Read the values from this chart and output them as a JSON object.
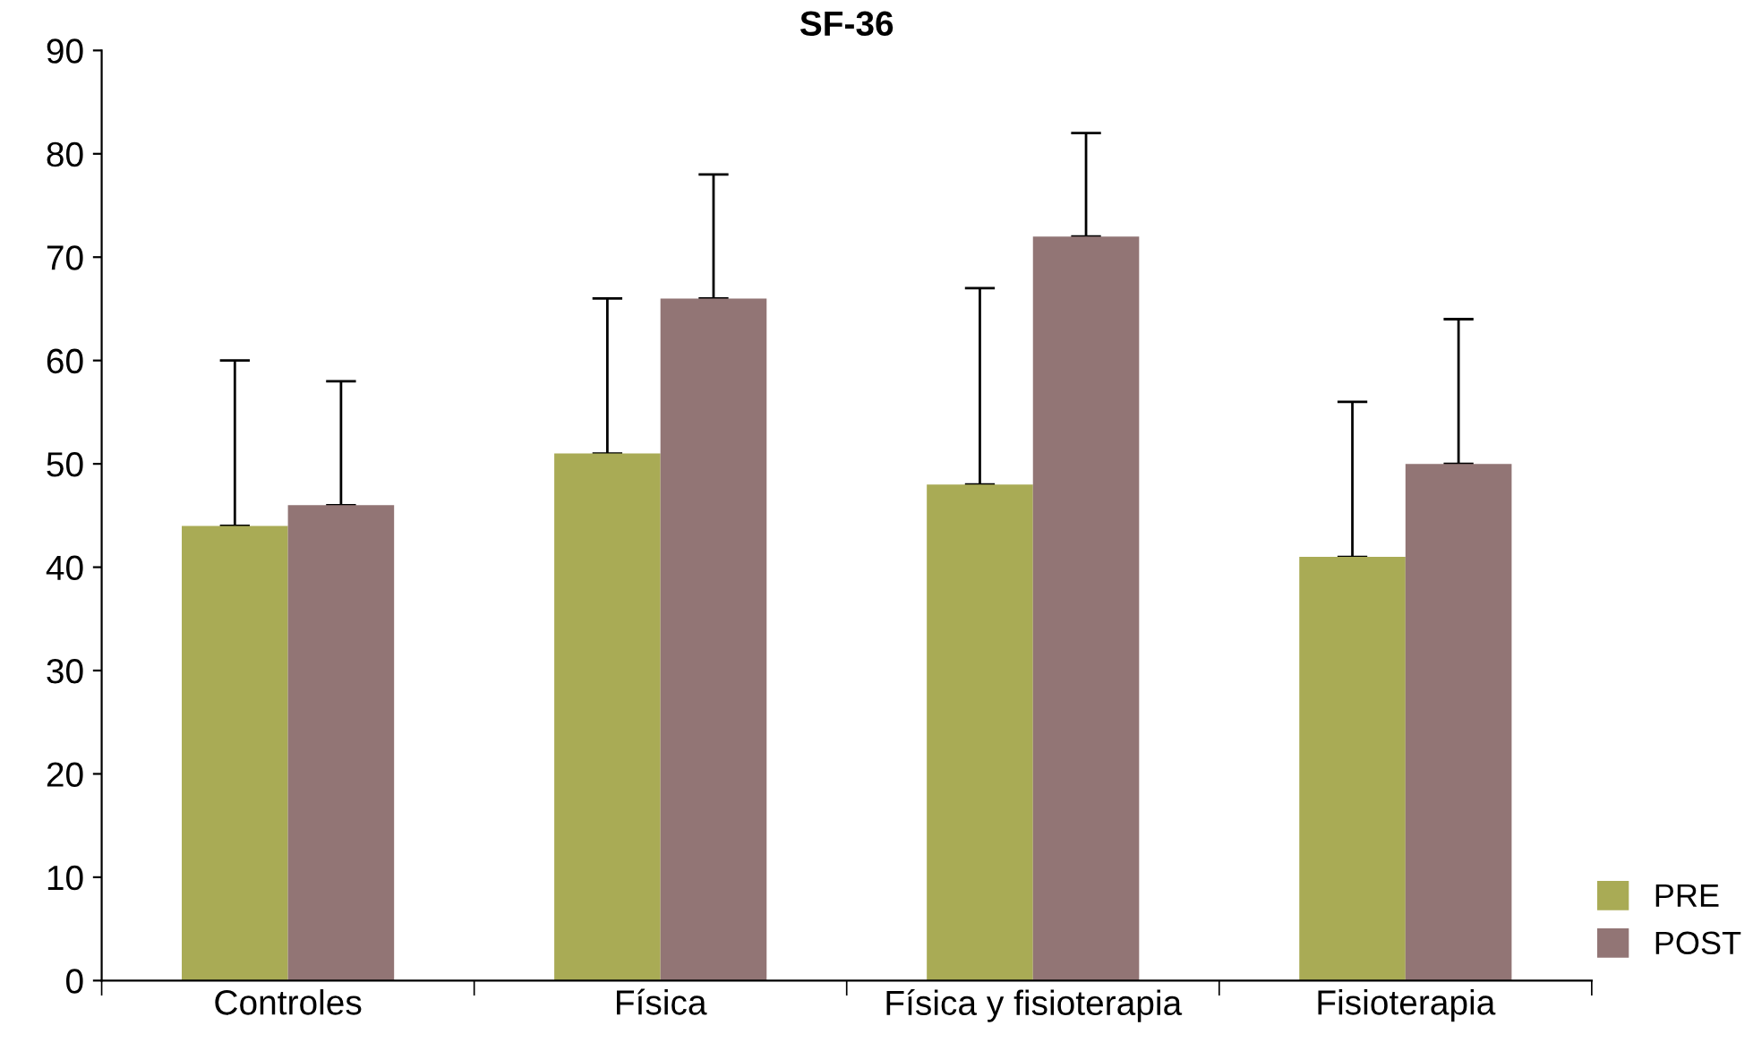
{
  "chart_data": {
    "type": "bar",
    "title": "SF-36",
    "categories": [
      "Controles",
      "Física",
      "Física y fisioterapia",
      "Fisioterapia"
    ],
    "series": [
      {
        "name": "PRE",
        "color": "#a9ab55",
        "values": [
          44,
          51,
          48,
          41
        ],
        "errors": [
          [
            44,
            60
          ],
          [
            51,
            66
          ],
          [
            48,
            67
          ],
          [
            41,
            56
          ]
        ]
      },
      {
        "name": "POST",
        "color": "#927575",
        "values": [
          46,
          66,
          72,
          50
        ],
        "errors": [
          [
            46,
            58
          ],
          [
            66,
            78
          ],
          [
            72,
            82
          ],
          [
            50,
            64
          ]
        ]
      }
    ],
    "ylim": [
      0,
      90
    ],
    "yticks": [
      0,
      10,
      20,
      30,
      40,
      50,
      60,
      70,
      80,
      90
    ],
    "grid": false,
    "legend": "bottom right"
  }
}
